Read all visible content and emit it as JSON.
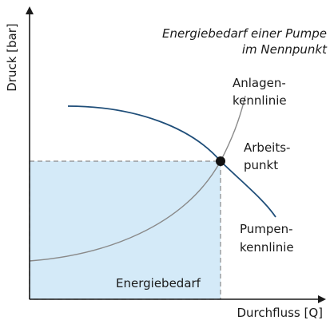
{
  "title": {
    "lines": [
      "Energiebedarf einer Pumpe",
      "im Nennpunkt"
    ]
  },
  "axes": {
    "y_label": "Druck [bar]",
    "x_label": "Durchfluss [Q]"
  },
  "curves": {
    "system": {
      "lines": [
        "Anlagen-",
        "kennlinie"
      ]
    },
    "pump": {
      "lines": [
        "Pumpen-",
        "kennlinie"
      ]
    }
  },
  "operating_point": {
    "lines": [
      "Arbeits-",
      "punkt"
    ]
  },
  "area": {
    "label": "Energiebedarf"
  }
}
